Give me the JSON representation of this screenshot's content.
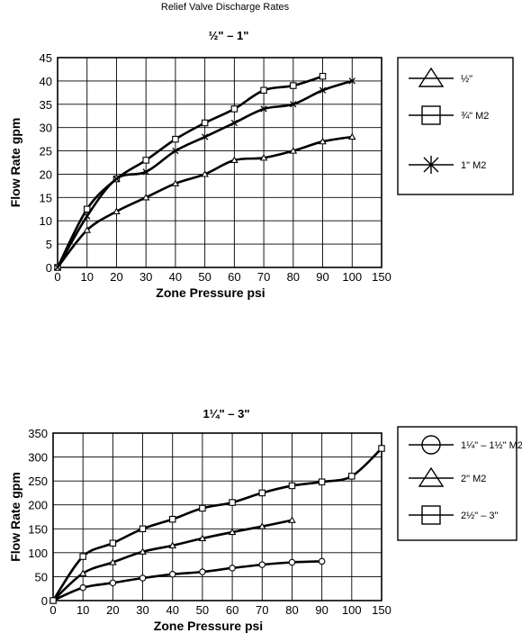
{
  "page": {
    "title": "Relief Valve Discharge Rates"
  },
  "chart_data": [
    {
      "type": "line",
      "title": "½\" – 1\"",
      "xlabel": "Zone Pressure psi",
      "ylabel": "Flow Rate gpm",
      "x_ticks": [
        "0",
        "10",
        "20",
        "30",
        "40",
        "50",
        "60",
        "70",
        "80",
        "90",
        "100",
        "150"
      ],
      "y_ticks": [
        0,
        5,
        10,
        15,
        20,
        25,
        30,
        35,
        40,
        45
      ],
      "ylim": [
        0,
        45
      ],
      "grid": true,
      "legend_position": "right",
      "series": [
        {
          "name": "½\"",
          "marker": "triangle",
          "x": [
            0,
            10,
            20,
            30,
            40,
            50,
            60,
            70,
            80,
            90,
            100
          ],
          "y": [
            0,
            8,
            12,
            15,
            18,
            20,
            23,
            23.5,
            25,
            27,
            28
          ]
        },
        {
          "name": "¾\" M2",
          "marker": "square",
          "x": [
            0,
            10,
            20,
            30,
            40,
            50,
            60,
            70,
            80,
            90
          ],
          "y": [
            0,
            12.5,
            19,
            23,
            27.5,
            31,
            34,
            38,
            39,
            41
          ]
        },
        {
          "name": "1\" M2",
          "marker": "x",
          "x": [
            0,
            10,
            20,
            30,
            40,
            50,
            60,
            70,
            80,
            90,
            100
          ],
          "y": [
            0,
            11,
            19,
            20.5,
            25,
            28,
            31,
            34,
            35,
            38,
            40
          ]
        }
      ]
    },
    {
      "type": "line",
      "title": "1¼\" – 3\"",
      "xlabel": "Zone Pressure psi",
      "ylabel": "Flow Rate gpm",
      "x_ticks": [
        "0",
        "10",
        "20",
        "30",
        "40",
        "50",
        "60",
        "70",
        "80",
        "90",
        "100",
        "150"
      ],
      "y_ticks": [
        0,
        50,
        100,
        150,
        200,
        250,
        300,
        350
      ],
      "ylim": [
        0,
        350
      ],
      "grid": true,
      "legend_position": "right",
      "series": [
        {
          "name": "1¼\" – 1½\" M2",
          "marker": "circle",
          "x": [
            0,
            10,
            20,
            30,
            40,
            50,
            60,
            70,
            80,
            90
          ],
          "y": [
            0,
            27,
            37,
            47,
            55,
            60,
            68,
            75,
            80,
            82
          ]
        },
        {
          "name": "2\" M2",
          "marker": "triangle",
          "x": [
            0,
            10,
            20,
            30,
            40,
            50,
            60,
            70,
            80
          ],
          "y": [
            0,
            57,
            80,
            102,
            115,
            130,
            143,
            155,
            168
          ]
        },
        {
          "name": "2½\" – 3\"",
          "marker": "square",
          "x": [
            0,
            10,
            20,
            30,
            40,
            50,
            60,
            70,
            80,
            90,
            100,
            150
          ],
          "y": [
            0,
            92,
            120,
            150,
            170,
            193,
            205,
            225,
            240,
            248,
            260,
            318
          ]
        }
      ]
    }
  ]
}
